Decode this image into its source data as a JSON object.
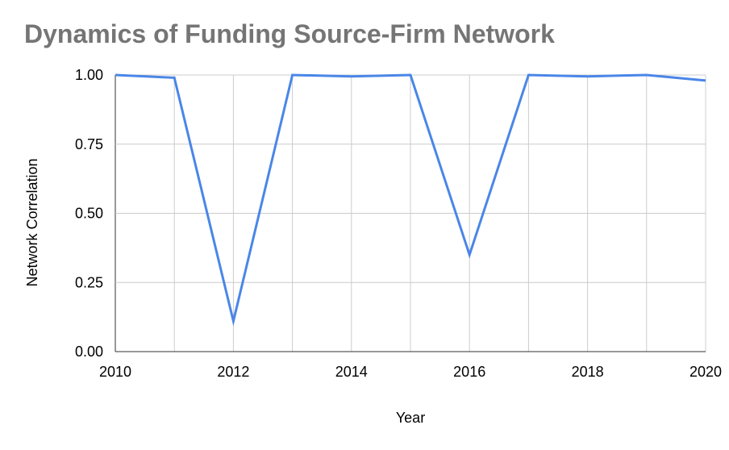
{
  "chart_data": {
    "type": "line",
    "title": "Dynamics of Funding Source-Firm Network",
    "xlabel": "Year",
    "ylabel": "Network Correlation",
    "xlim": [
      2010,
      2020
    ],
    "ylim": [
      0,
      1
    ],
    "x_ticks": [
      "2010",
      "2012",
      "2014",
      "2016",
      "2018",
      "2020"
    ],
    "y_ticks": [
      "0.00",
      "0.25",
      "0.50",
      "0.75",
      "1.00"
    ],
    "grid": true,
    "series": [
      {
        "name": "Network Correlation",
        "color": "#4a86e8",
        "x": [
          2010,
          2011,
          2012,
          2013,
          2014,
          2015,
          2016,
          2017,
          2018,
          2019,
          2020
        ],
        "values": [
          1.0,
          0.99,
          0.11,
          1.0,
          0.995,
          1.0,
          0.35,
          1.0,
          0.995,
          1.0,
          0.98
        ]
      }
    ]
  }
}
